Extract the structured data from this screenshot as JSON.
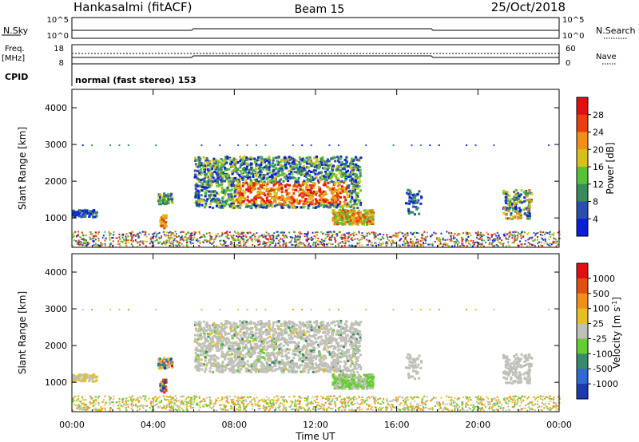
{
  "header": {
    "station": "Hankasalmi (fitACF)",
    "beam": "Beam 15",
    "date": "25/Oct/2018"
  },
  "top_panels": {
    "nsky": {
      "label": "N.Sky",
      "ytick_top": "10^5",
      "ytick_bottom": "10^0"
    },
    "nsearch": {
      "label": "N.Search",
      "ytick_top": "10^5",
      "ytick_bottom": "10^0"
    },
    "freq": {
      "label_line1": "Freq.",
      "label_line2": "[MHz]",
      "ytick_top": "18",
      "ytick_bottom": "8"
    },
    "nave": {
      "label": "Nave",
      "ytick_top": "60",
      "ytick_bottom": "0"
    },
    "cpid": {
      "label": "CPID",
      "text": "normal (fast stereo) 153"
    }
  },
  "chart_data": [
    {
      "type": "heatmap",
      "name": "power",
      "ylabel": "Slant Range [km]",
      "yticks": [
        "1000",
        "2000",
        "3000",
        "4000"
      ],
      "ylim": [
        200,
        4500
      ],
      "xlim": [
        0,
        24
      ],
      "colorbar": {
        "label": "Power [dB]",
        "ticks": [
          "4",
          "8",
          "12",
          "16",
          "20",
          "24",
          "28"
        ],
        "colors": [
          "#0a1ed8",
          "#2a4fb0",
          "#3a8a5a",
          "#55c23a",
          "#d4c21a",
          "#f09018",
          "#e84010",
          "#e01010"
        ]
      }
    },
    {
      "type": "heatmap",
      "name": "velocity",
      "ylabel": "Slant Range [km]",
      "yticks": [
        "1000",
        "2000",
        "3000",
        "4000"
      ],
      "ylim": [
        200,
        4500
      ],
      "xlim": [
        0,
        24
      ],
      "xticks": [
        "00:00",
        "04:00",
        "08:00",
        "12:00",
        "16:00",
        "20:00",
        "00:00"
      ],
      "xlabel": "Time UT",
      "colorbar": {
        "label": "Velocity [m s^-1]",
        "ticks": [
          "1000",
          "500",
          "100",
          "25",
          "-25",
          "-100",
          "-500",
          "-1000"
        ],
        "colors": [
          "#1a3ab0",
          "#2f6ad0",
          "#3a8a6a",
          "#66cc33",
          "#c0c0b8",
          "#e6c020",
          "#f09018",
          "#e05010",
          "#e01010"
        ]
      }
    }
  ]
}
